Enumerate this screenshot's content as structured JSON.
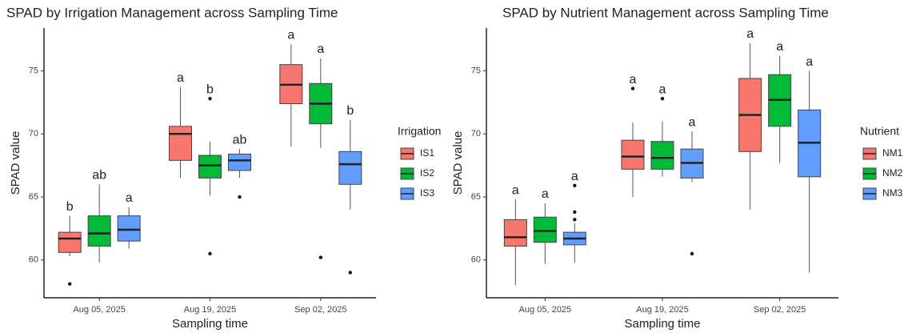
{
  "chart_data": [
    {
      "type": "box",
      "title": "SPAD by Irrigation Management across Sampling Time",
      "x_label": "Sampling time",
      "y_label": "SPAD value",
      "legend_title": "Irrigation",
      "categories": [
        "Aug 05, 2025",
        "Aug 19, 2025",
        "Sep 02, 2025"
      ],
      "ylim": [
        57,
        78.4
      ],
      "yticks": [
        60,
        65,
        70,
        75
      ],
      "series": [
        {
          "name": "IS1",
          "color": "#f8766d",
          "min": [
            60.3,
            66.5,
            69.0
          ],
          "q1": [
            60.6,
            67.9,
            72.4
          ],
          "median": [
            61.7,
            70.0,
            73.9
          ],
          "q3": [
            62.2,
            70.6,
            75.5
          ],
          "max": [
            63.5,
            73.7,
            77.1
          ],
          "outliers": [
            [
              58.1
            ],
            [],
            []
          ],
          "labels": [
            "b",
            "a",
            "a"
          ]
        },
        {
          "name": "IS2",
          "color": "#00ba38",
          "min": [
            59.8,
            65.1,
            68.9
          ],
          "q1": [
            61.1,
            66.5,
            70.8
          ],
          "median": [
            62.1,
            67.5,
            72.4
          ],
          "q3": [
            63.5,
            68.3,
            74.0
          ],
          "max": [
            66.0,
            69.4,
            76.0
          ],
          "outliers": [
            [],
            [
              72.8,
              60.5
            ],
            [
              60.2
            ]
          ],
          "labels": [
            "ab",
            "b",
            "a"
          ]
        },
        {
          "name": "IS3",
          "color": "#619cff",
          "min": [
            60.9,
            66.5,
            64.0
          ],
          "q1": [
            61.5,
            67.1,
            66.0
          ],
          "median": [
            62.4,
            67.9,
            67.6
          ],
          "q3": [
            63.5,
            68.4,
            68.6
          ],
          "max": [
            64.2,
            68.8,
            71.1
          ],
          "outliers": [
            [],
            [
              65.0
            ],
            [
              59.0
            ]
          ],
          "labels": [
            "a",
            "ab",
            "b"
          ]
        }
      ]
    },
    {
      "type": "box",
      "title": "SPAD by Nutrient Management across Sampling Time",
      "x_label": "Sampling time",
      "y_label": "SPAD value",
      "legend_title": "Nutrient",
      "categories": [
        "Aug 05, 2025",
        "Aug 19, 2025",
        "Sep 02, 2025"
      ],
      "ylim": [
        57,
        78.4
      ],
      "yticks": [
        60,
        65,
        70,
        75
      ],
      "series": [
        {
          "name": "NM1",
          "color": "#f8766d",
          "min": [
            58.0,
            65.0,
            64.0
          ],
          "q1": [
            61.1,
            67.2,
            68.6
          ],
          "median": [
            61.8,
            68.2,
            71.5
          ],
          "q3": [
            63.2,
            69.5,
            74.4
          ],
          "max": [
            64.8,
            70.9,
            77.2
          ],
          "outliers": [
            [],
            [
              73.6
            ],
            []
          ],
          "labels": [
            "a",
            "a",
            "a"
          ]
        },
        {
          "name": "NM2",
          "color": "#00ba38",
          "min": [
            59.7,
            66.6,
            67.7
          ],
          "q1": [
            61.4,
            67.2,
            70.6
          ],
          "median": [
            62.3,
            68.1,
            72.7
          ],
          "q3": [
            63.4,
            69.4,
            74.7
          ],
          "max": [
            64.5,
            71.0,
            76.2
          ],
          "outliers": [
            [],
            [
              72.8
            ],
            []
          ],
          "labels": [
            "a",
            "a",
            "a"
          ]
        },
        {
          "name": "NM3",
          "color": "#619cff",
          "min": [
            59.8,
            66.2,
            59.0
          ],
          "q1": [
            61.2,
            66.5,
            66.6
          ],
          "median": [
            61.7,
            67.7,
            69.3
          ],
          "q3": [
            62.2,
            68.8,
            71.9
          ],
          "max": [
            62.9,
            70.2,
            75.0
          ],
          "outliers": [
            [
              65.9,
              63.8,
              63.2
            ],
            [
              60.5
            ],
            []
          ],
          "labels": [
            "a",
            "a",
            "a"
          ]
        }
      ]
    }
  ]
}
